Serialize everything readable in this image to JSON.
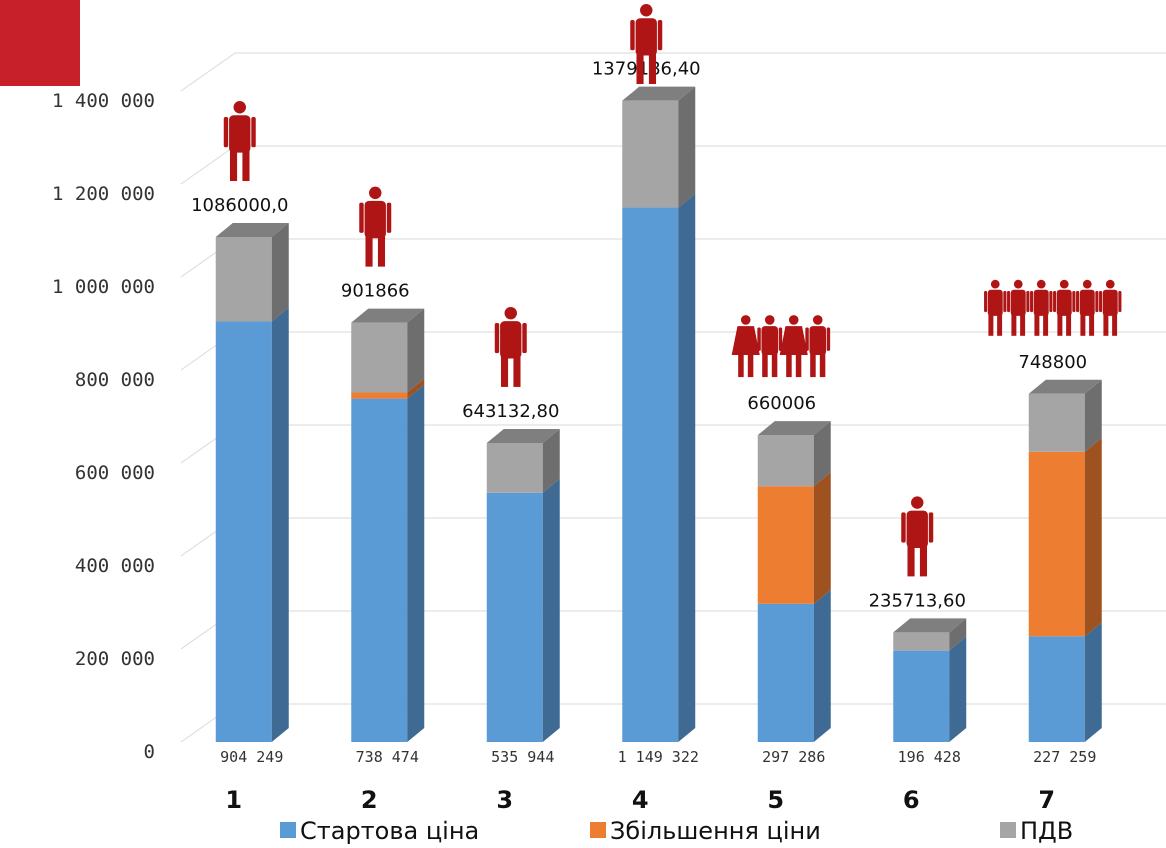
{
  "colors": {
    "start": "#5B9BD5",
    "start_side": "#3E6A93",
    "increase": "#ED7D31",
    "increase_side": "#9E521F",
    "vat": "#A5A5A5",
    "vat_side": "#6E6E6E",
    "cap": "#7F7F7F",
    "person": "#B01515",
    "logo": "#C8202A",
    "grid": "#D9D9D9"
  },
  "chart_data": {
    "type": "bar",
    "stacked": true,
    "categories": [
      "1",
      "2",
      "3",
      "4",
      "5",
      "6",
      "7"
    ],
    "ylim": [
      0,
      1400000
    ],
    "yticks": [
      "0",
      "200 000",
      "400 000",
      "600 000",
      "800 000",
      "1 000 000",
      "1 200 000",
      "1 400 000"
    ],
    "ytick_values": [
      0,
      200000,
      400000,
      600000,
      800000,
      1000000,
      1200000,
      1400000
    ],
    "series": [
      {
        "name": "Стартова ціна",
        "values": [
          904249,
          738474,
          535944,
          1149322,
          297286,
          196428,
          227259
        ]
      },
      {
        "name": "Збільшення ціни",
        "values": [
          0,
          13081,
          0,
          0,
          252719,
          0,
          396741
        ]
      },
      {
        "name": "ПДВ",
        "values": [
          181751,
          150311,
          107189,
          229864,
          110001,
          39285,
          124800
        ]
      }
    ],
    "base_labels": [
      "904 249",
      "738 474",
      "535 944",
      "1 149 322",
      "297 286",
      "196 428",
      "227 259"
    ],
    "total_labels": [
      "1086000,0",
      "901866",
      "643132,80",
      "1379186,40",
      "660006",
      "235713,60",
      "748800"
    ],
    "people_icons": [
      1,
      1,
      1,
      1,
      4,
      1,
      6
    ],
    "grid": true,
    "legend_position": "bottom"
  }
}
